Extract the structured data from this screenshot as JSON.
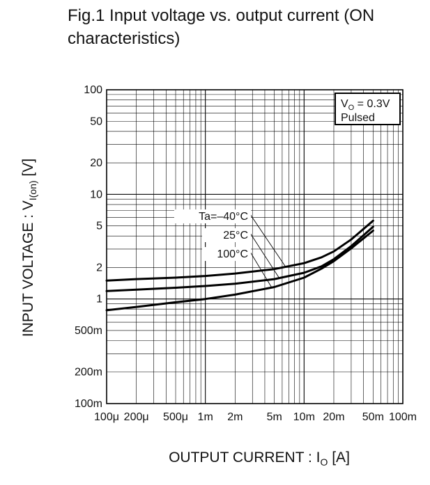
{
  "chart_data": {
    "type": "line",
    "title": "Fig.1 Input voltage vs. output current (ON characteristics)",
    "xlabel": "OUTPUT CURRENT : IO [A]",
    "xlabel_parts": {
      "main": "OUTPUT CURRENT : I",
      "sub": "O",
      "tail": " [A]"
    },
    "ylabel": "INPUT VOLTAGE : VI(on) [V]",
    "ylabel_parts": {
      "main": "INPUT VOLTAGE : V",
      "sub": "I(on)",
      "tail": " [V]"
    },
    "x_scale": "log",
    "y_scale": "log",
    "xlim": [
      0.0001,
      0.1
    ],
    "ylim": [
      0.1,
      100
    ],
    "grid": true,
    "x_ticks": [
      {
        "value": 0.0001,
        "label": "100μ"
      },
      {
        "value": 0.0002,
        "label": "200μ"
      },
      {
        "value": 0.0005,
        "label": "500μ"
      },
      {
        "value": 0.001,
        "label": "1m"
      },
      {
        "value": 0.002,
        "label": "2m"
      },
      {
        "value": 0.005,
        "label": "5m"
      },
      {
        "value": 0.01,
        "label": "10m"
      },
      {
        "value": 0.02,
        "label": "20m"
      },
      {
        "value": 0.05,
        "label": "50m"
      },
      {
        "value": 0.1,
        "label": "100m"
      }
    ],
    "y_ticks": [
      {
        "value": 100,
        "label": "100"
      },
      {
        "value": 50,
        "label": "50"
      },
      {
        "value": 20,
        "label": "20"
      },
      {
        "value": 10,
        "label": "10"
      },
      {
        "value": 5,
        "label": "5"
      },
      {
        "value": 2,
        "label": "2"
      },
      {
        "value": 1,
        "label": "1"
      },
      {
        "value": 0.5,
        "label": "500m"
      },
      {
        "value": 0.2,
        "label": "200m"
      },
      {
        "value": 0.1,
        "label": "100m"
      }
    ],
    "conditions_box": {
      "line1_main": "V",
      "line1_sub": "O",
      "line1_tail": " = 0.3V",
      "line2": "Pulsed",
      "placement": "top-right"
    },
    "series_label_prefix": "Ta=",
    "series": [
      {
        "name": "–40°C",
        "x": [
          0.0001,
          0.0002,
          0.0005,
          0.001,
          0.002,
          0.005,
          0.01,
          0.015,
          0.02,
          0.03,
          0.05
        ],
        "y": [
          1.5,
          1.55,
          1.6,
          1.66,
          1.75,
          1.93,
          2.2,
          2.5,
          2.85,
          3.7,
          5.6
        ]
      },
      {
        "name": "25°C",
        "x": [
          0.0001,
          0.0002,
          0.0005,
          0.001,
          0.002,
          0.005,
          0.01,
          0.015,
          0.02,
          0.03,
          0.05
        ],
        "y": [
          1.19,
          1.23,
          1.28,
          1.33,
          1.4,
          1.55,
          1.78,
          2.05,
          2.4,
          3.2,
          4.9
        ]
      },
      {
        "name": "100°C",
        "x": [
          0.0001,
          0.0002,
          0.0005,
          0.001,
          0.002,
          0.005,
          0.01,
          0.015,
          0.02,
          0.03,
          0.05
        ],
        "y": [
          0.78,
          0.84,
          0.93,
          1.0,
          1.1,
          1.3,
          1.6,
          1.95,
          2.3,
          3.05,
          4.5
        ]
      }
    ],
    "label_leader_targets": [
      {
        "series": "–40°C",
        "x": 0.0065
      },
      {
        "series": "25°C",
        "x": 0.0056
      },
      {
        "series": "100°C",
        "x": 0.0047
      }
    ]
  }
}
